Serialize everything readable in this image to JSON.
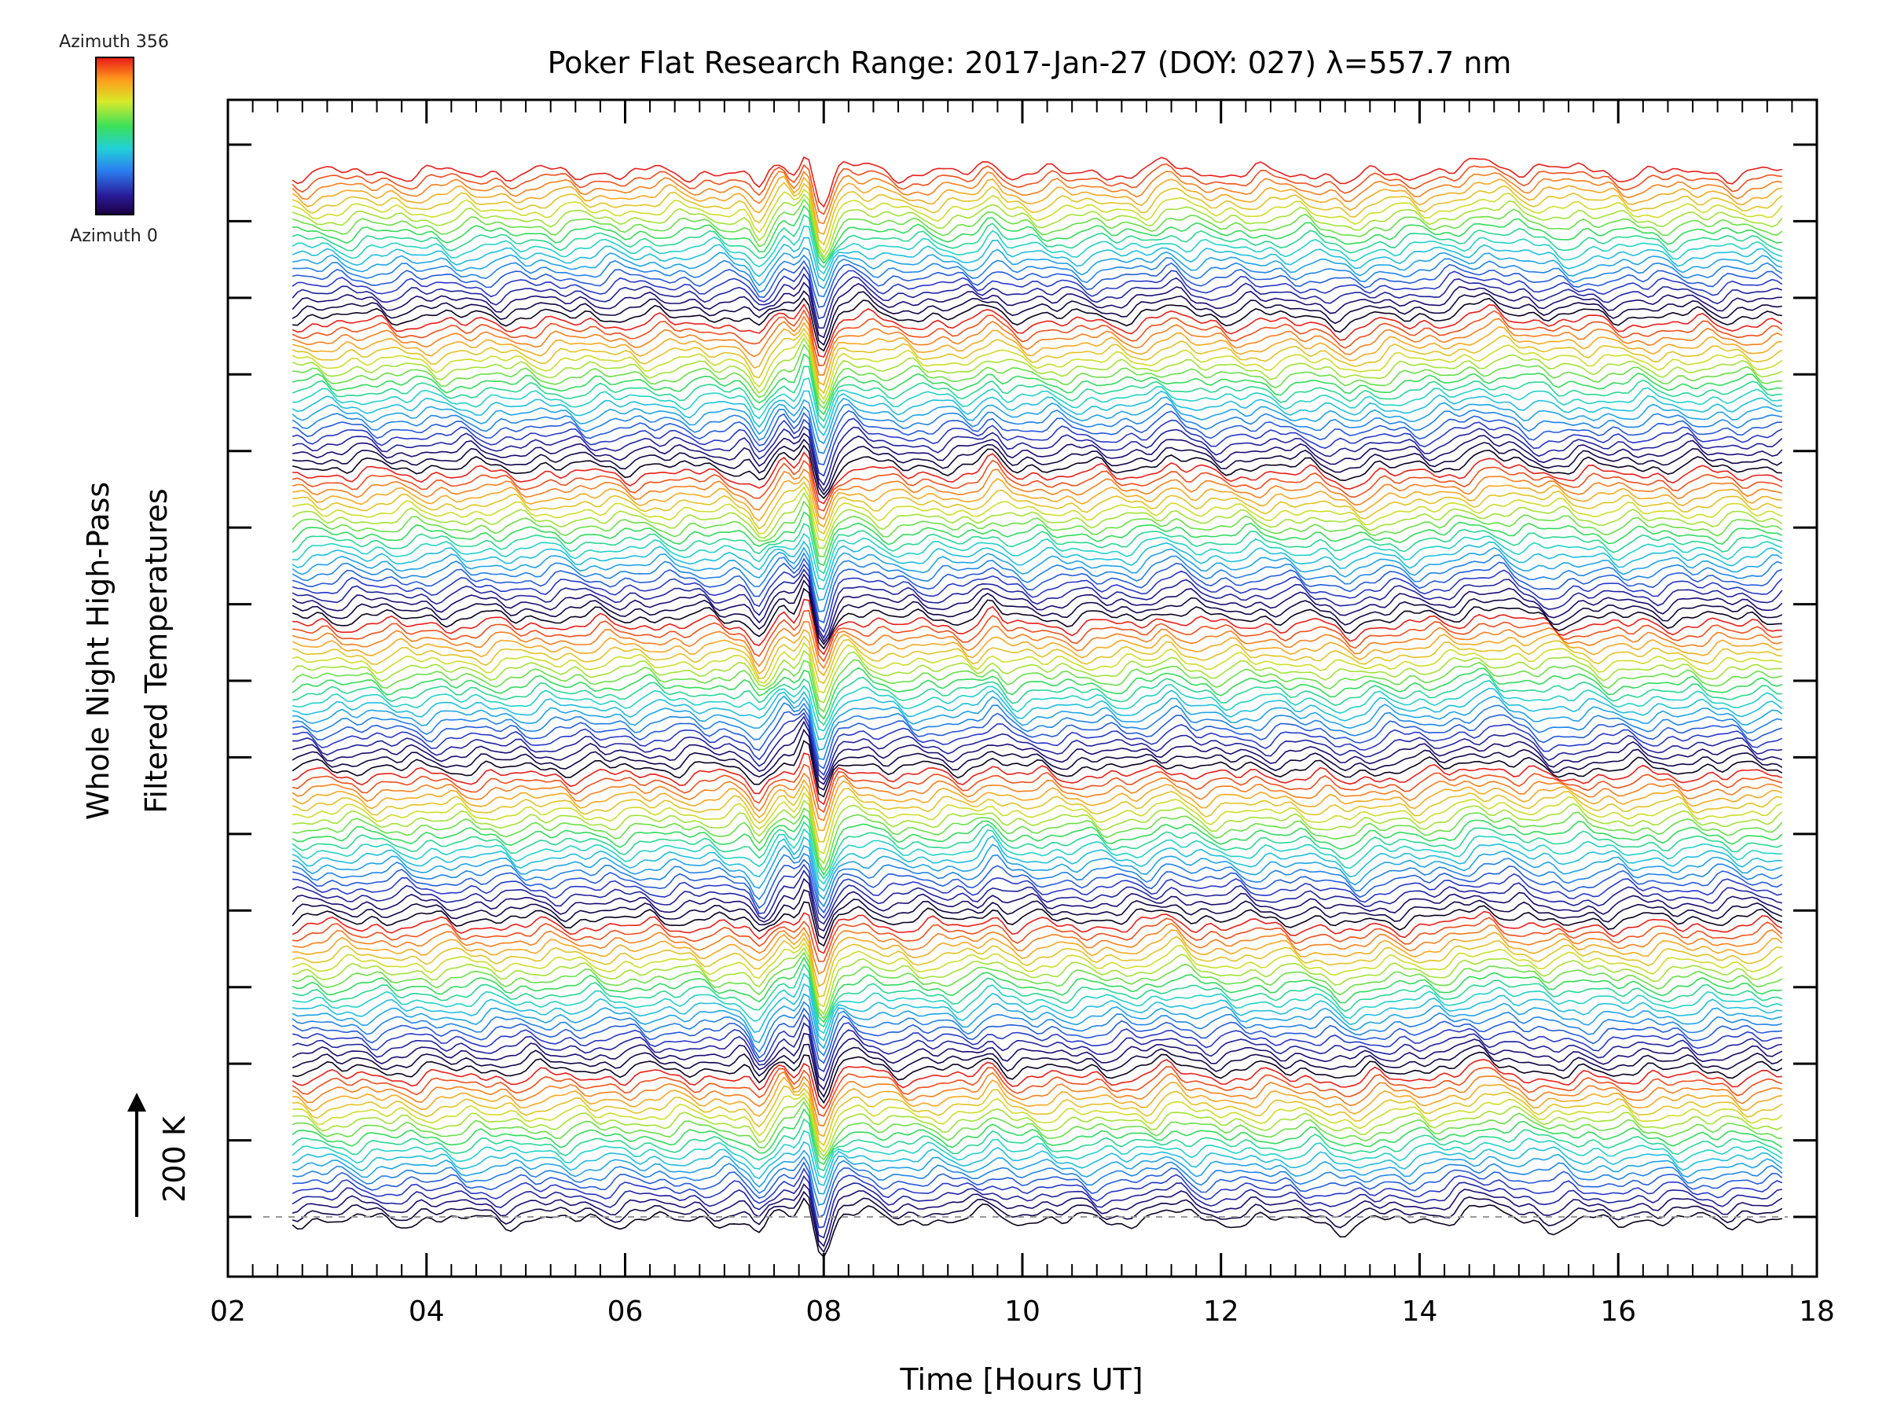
{
  "chart_data": {
    "type": "line",
    "title": "Poker Flat Research Range: 2017-Jan-27 (DOY: 027) λ=557.7 nm",
    "xlabel": "Time [Hours UT]",
    "ylabel_line1": "Whole Night High-Pass",
    "ylabel_line2": "Filtered Temperatures",
    "scale_label": "200 K",
    "xlim": [
      2,
      18
    ],
    "x_ticks": [
      "02",
      "04",
      "06",
      "08",
      "10",
      "12",
      "14",
      "16",
      "18"
    ],
    "x_range_data": [
      2.65,
      17.65
    ],
    "colorbar": {
      "top_label": "Azimuth 356",
      "bottom_label": "Azimuth 0",
      "min": 0,
      "max": 356,
      "colormap": "rainbow"
    },
    "series_count": 140,
    "azimuth_cycle_length": 20,
    "grid": false,
    "baseline_dashed": true
  }
}
